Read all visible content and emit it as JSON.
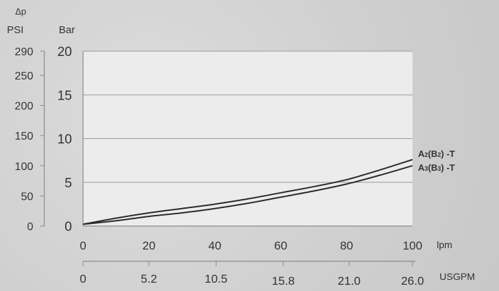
{
  "chart_data": {
    "type": "line",
    "delta_symbol": "Δp",
    "psi_unit": "PSI",
    "bar_unit": "Bar",
    "lpm_unit": "lpm",
    "usgpm_unit": "USGPM",
    "psi_ticks": [
      "290",
      "250",
      "200",
      "150",
      "100",
      "50",
      "0"
    ],
    "psi_values": [
      290,
      250,
      200,
      150,
      100,
      50,
      0
    ],
    "bar_ticks": [
      "20",
      "15",
      "10",
      "5",
      "0"
    ],
    "bar_values": [
      20,
      15,
      10,
      5,
      0
    ],
    "lpm_ticks": [
      "0",
      "20",
      "40",
      "60",
      "80",
      "100"
    ],
    "lpm_values": [
      0,
      20,
      40,
      60,
      80,
      100
    ],
    "usgpm_ticks": [
      "0",
      "5.2",
      "10.5",
      "15.8",
      "21.0",
      "26.0"
    ],
    "usgpm_values": [
      0,
      5.2,
      10.5,
      15.8,
      21.0,
      26.0
    ],
    "xlim": [
      0,
      100
    ],
    "ylim": [
      0,
      20
    ],
    "grid": true,
    "series": [
      {
        "name": "A2(B2) -T",
        "name_main_1": "A",
        "name_sub_1": "2",
        "name_main_2": "(B",
        "name_sub_2": "2",
        "name_main_3": ") -T",
        "x": [
          0,
          10,
          20,
          30,
          40,
          50,
          60,
          70,
          80,
          90,
          100
        ],
        "y": [
          0.2,
          0.9,
          1.5,
          2.0,
          2.5,
          3.1,
          3.8,
          4.5,
          5.3,
          6.4,
          7.6
        ]
      },
      {
        "name": "A3(B3) -T",
        "name_main_1": "A",
        "name_sub_1": "3",
        "name_main_2": "(B",
        "name_sub_2": "3",
        "name_main_3": ") -T",
        "x": [
          0,
          10,
          20,
          30,
          40,
          50,
          60,
          70,
          80,
          90,
          100
        ],
        "y": [
          0.2,
          0.6,
          1.1,
          1.5,
          2.0,
          2.6,
          3.3,
          4.0,
          4.8,
          5.8,
          6.9
        ]
      }
    ],
    "colors": {
      "plot_bg": "#ececec",
      "grid": "#9a9a9a",
      "axis": "#8a8a8a",
      "line": "#2a2a2a",
      "text": "#333333"
    }
  }
}
